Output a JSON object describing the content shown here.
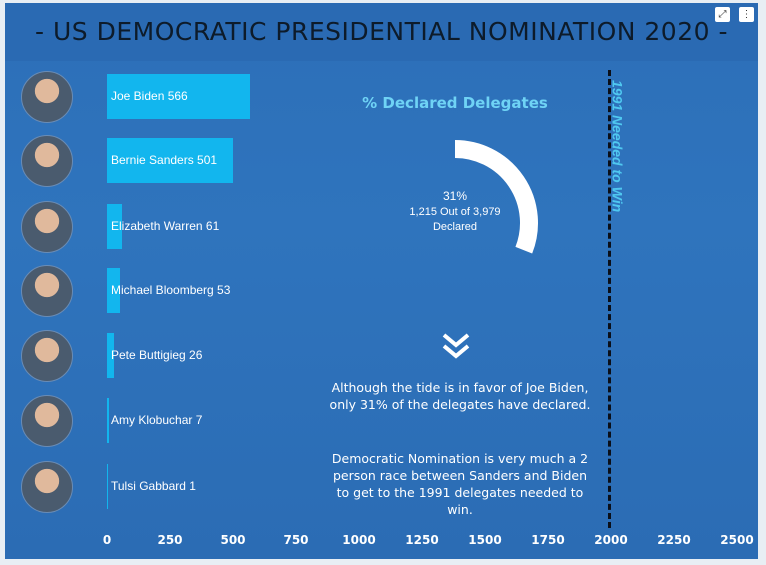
{
  "header": {
    "title": "- US DEMOCRATIC PRESIDENTIAL NOMINATION 2020 -",
    "expand_icon": "expand-icon",
    "menu_icon": "more-vertical-icon"
  },
  "chart_data": [
    {
      "type": "bar",
      "orientation": "horizontal",
      "categories": [
        "Joe Biden",
        "Bernie Sanders",
        "Elizabeth Warren",
        "Michael Bloomberg",
        "Pete Buttigieg",
        "Amy Klobuchar",
        "Tulsi Gabbard"
      ],
      "values": [
        566,
        501,
        61,
        53,
        26,
        7,
        1
      ],
      "data_labels": [
        "Joe Biden 566",
        "Bernie Sanders 501",
        "Elizabeth Warren 61",
        "Michael Bloomberg 53",
        "Pete Buttigieg 26",
        "Amy Klobuchar 7",
        "Tulsi Gabbard 1"
      ],
      "xlim": [
        0,
        2500
      ],
      "xticks": [
        "0",
        "250",
        "500",
        "750",
        "1000",
        "1250",
        "1500",
        "1750",
        "2000",
        "2250",
        "2500"
      ],
      "reference_line": {
        "value": 1991,
        "label": "1991 Needed to Win"
      },
      "bar_color": "#12b6ee",
      "grid": false
    },
    {
      "type": "pie",
      "subtype": "donut",
      "title": "% Declared Delegates",
      "value": 31,
      "center_text": [
        "31%",
        "1,215 Out of 3,979",
        "Declared"
      ],
      "color": "#ffffff"
    }
  ],
  "commentary": {
    "paragraph1": "Although the tide is in favor of Joe Biden, only 31% of the delegates have declared.",
    "paragraph2": "Democratic Nomination is very much a 2 person race between Sanders and Biden to get to the 1991 delegates needed to win."
  },
  "colors": {
    "background": "#2c6fb8",
    "accent": "#12b6ee",
    "title_text": "#0d1b2a"
  }
}
